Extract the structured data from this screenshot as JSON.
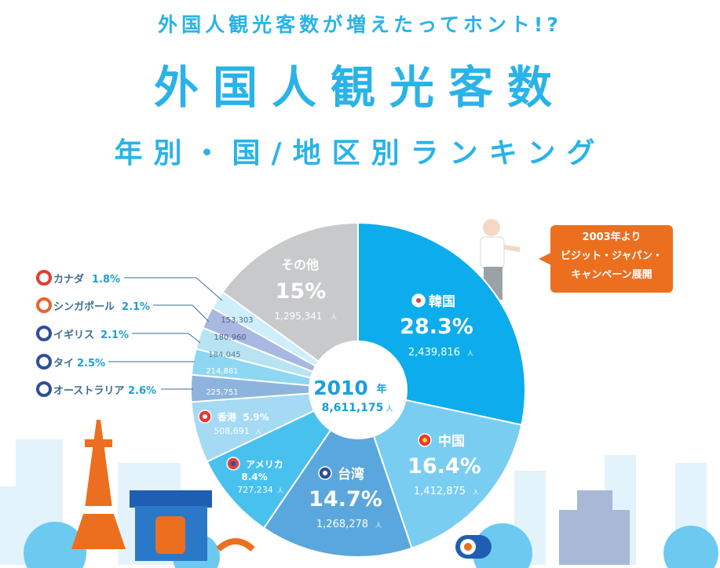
{
  "header": {
    "subtitle": "外国人観光客数が増えたってホント!?",
    "title": "外国人観光客数",
    "title2": "年別・国/地区別ランキング"
  },
  "callout": {
    "line1": "2003年より",
    "line2": "ビジット・ジャパン・",
    "line3": "キャンペーン展開"
  },
  "chart_data": {
    "type": "pie",
    "center": {
      "year": "2010",
      "year_unit": "年",
      "total": "8,611,175",
      "unit": "人"
    },
    "slices": [
      {
        "name": "韓国",
        "pct": 28.3,
        "pct_label": "28.3%",
        "count": "2,439,816",
        "color": "#0dacec"
      },
      {
        "name": "中国",
        "pct": 16.4,
        "pct_label": "16.4%",
        "count": "1,412,875",
        "color": "#79cdf1"
      },
      {
        "name": "台湾",
        "pct": 14.7,
        "pct_label": "14.7%",
        "count": "1,268,278",
        "color": "#5aa7dd"
      },
      {
        "name": "アメリカ",
        "pct": 8.4,
        "pct_label": "8.4%",
        "count": "727,234",
        "color": "#49c1ef"
      },
      {
        "name": "香港",
        "pct": 5.9,
        "pct_label": "5.9%",
        "count": "508,691",
        "color": "#a4daf3"
      },
      {
        "name": "オーストラリア",
        "pct": 2.6,
        "pct_label": "2.6%",
        "count": "225,751",
        "color": "#8db4dd"
      },
      {
        "name": "タイ",
        "pct": 2.5,
        "pct_label": "2.5%",
        "count": "214,881",
        "color": "#8ed7f2"
      },
      {
        "name": "イギリス",
        "pct": 2.1,
        "pct_label": "2.1%",
        "count": "184,045",
        "color": "#b7e3f2"
      },
      {
        "name": "シンガポール",
        "pct": 2.1,
        "pct_label": "2.1%",
        "count": "180,960",
        "color": "#a9b8e0"
      },
      {
        "name": "カナダ",
        "pct": 1.8,
        "pct_label": "1.8%",
        "count": "153,303",
        "color": "#cdeefa"
      },
      {
        "name": "その他",
        "pct": 15,
        "pct_label": "15%",
        "count": "1,295,341",
        "color": "#c8c9ca"
      }
    ],
    "legend": [
      {
        "name": "カナダ",
        "pct_label": "1.8%"
      },
      {
        "name": "シンガポール",
        "pct_label": "2.1%"
      },
      {
        "name": "イギリス",
        "pct_label": "2.1%"
      },
      {
        "name": "タイ",
        "pct_label": "2.5%"
      },
      {
        "name": "オーストラリア",
        "pct_label": "2.6%"
      }
    ]
  },
  "colors": {
    "accent": "#29b3e8",
    "callout": "#ec6f1f",
    "text_blue": "#1a9fd9",
    "grey": "#c8c9ca"
  }
}
